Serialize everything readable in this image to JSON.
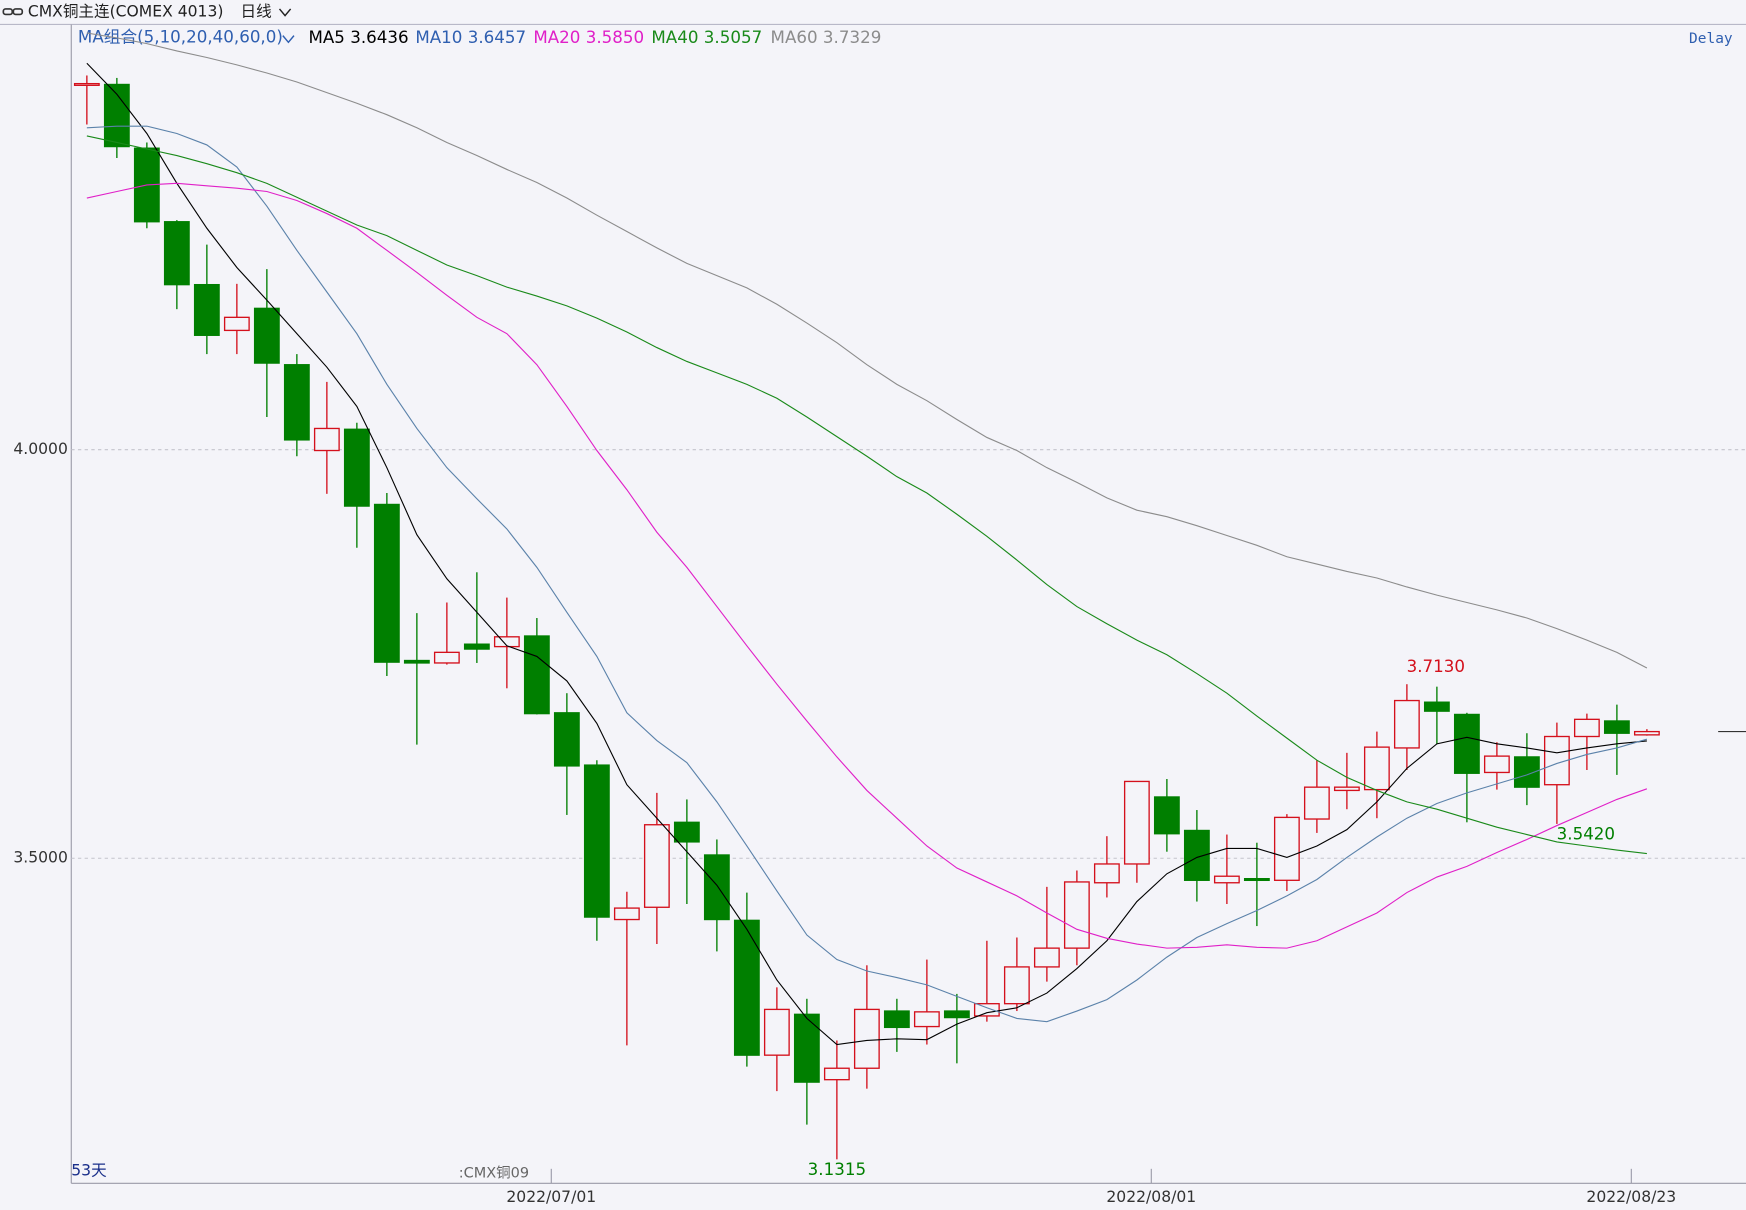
{
  "chart_data": {
    "type": "candlestick",
    "title": "CMX铜主连(COMEX 4013)",
    "period": "日线",
    "ma_group": "MA组合(5,10,20,40,60,0)",
    "delay": "Delay",
    "day_count": "53天",
    "contract": ":CMX铜09",
    "up_color": "#d4101c",
    "down_color": "#007f00",
    "categories": [
      null,
      null,
      null,
      null,
      null,
      null,
      null,
      null,
      null,
      null,
      null,
      null,
      null,
      null,
      null,
      null,
      "2022/07/01",
      null,
      null,
      null,
      null,
      null,
      null,
      null,
      null,
      null,
      null,
      null,
      null,
      null,
      null,
      null,
      null,
      null,
      null,
      null,
      "2022/08/01",
      null,
      null,
      null,
      null,
      null,
      null,
      null,
      null,
      null,
      null,
      null,
      null,
      null,
      null,
      null,
      "2022/08/23"
    ],
    "open": [
      4.448,
      4.447,
      4.369,
      4.279,
      4.202,
      4.146,
      4.173,
      4.104,
      3.999,
      4.025,
      3.933,
      3.742,
      3.739,
      3.762,
      3.759,
      3.772,
      3.678,
      3.614,
      3.425,
      3.44,
      3.544,
      3.504,
      3.424,
      3.259,
      3.309,
      3.229,
      3.243,
      3.313,
      3.294,
      3.313,
      3.307,
      3.322,
      3.367,
      3.39,
      3.47,
      3.493,
      3.575,
      3.534,
      3.47,
      3.475,
      3.473,
      3.548,
      3.583,
      3.584,
      3.635,
      3.691,
      3.676,
      3.605,
      3.624,
      3.59,
      3.649,
      3.668,
      3.651
    ],
    "high": [
      4.458,
      4.455,
      4.376,
      4.281,
      4.251,
      4.203,
      4.221,
      4.117,
      4.083,
      4.033,
      3.947,
      3.8,
      3.813,
      3.85,
      3.819,
      3.794,
      3.702,
      3.62,
      3.459,
      3.58,
      3.572,
      3.523,
      3.458,
      3.342,
      3.328,
      3.277,
      3.369,
      3.328,
      3.376,
      3.334,
      3.399,
      3.403,
      3.465,
      3.485,
      3.527,
      3.594,
      3.597,
      3.559,
      3.529,
      3.519,
      3.554,
      3.62,
      3.629,
      3.655,
      3.713,
      3.71,
      3.678,
      3.642,
      3.653,
      3.666,
      3.677,
      3.688,
      3.658
    ],
    "low": [
      4.398,
      4.357,
      4.271,
      4.172,
      4.117,
      4.117,
      4.04,
      3.992,
      3.946,
      3.88,
      3.723,
      3.639,
      3.737,
      3.739,
      3.708,
      3.676,
      3.553,
      3.399,
      3.271,
      3.395,
      3.444,
      3.386,
      3.245,
      3.215,
      3.174,
      3.1315,
      3.218,
      3.263,
      3.272,
      3.249,
      3.3,
      3.313,
      3.349,
      3.369,
      3.452,
      3.47,
      3.508,
      3.447,
      3.444,
      3.417,
      3.46,
      3.531,
      3.56,
      3.549,
      3.608,
      3.64,
      3.544,
      3.584,
      3.565,
      3.542,
      3.608,
      3.602,
      3.65
    ],
    "close": [
      4.448,
      4.371,
      4.279,
      4.202,
      4.14,
      4.162,
      4.106,
      4.012,
      4.026,
      3.931,
      3.74,
      3.739,
      3.752,
      3.756,
      3.771,
      3.677,
      3.613,
      3.428,
      3.439,
      3.541,
      3.52,
      3.425,
      3.259,
      3.315,
      3.226,
      3.243,
      3.315,
      3.293,
      3.312,
      3.305,
      3.322,
      3.367,
      3.39,
      3.471,
      3.493,
      3.594,
      3.53,
      3.473,
      3.478,
      3.473,
      3.55,
      3.587,
      3.587,
      3.636,
      3.693,
      3.68,
      3.604,
      3.625,
      3.587,
      3.649,
      3.67,
      3.653,
      3.655
    ],
    "series": [
      {
        "name": "MA5",
        "color": "#000000",
        "legend_value": "3.6436",
        "values": [
          4.473,
          4.435,
          4.387,
          4.326,
          4.271,
          4.223,
          4.183,
          4.142,
          4.101,
          4.053,
          3.978,
          3.896,
          3.842,
          3.801,
          3.76,
          3.747,
          3.717,
          3.665,
          3.59,
          3.549,
          3.508,
          3.467,
          3.413,
          3.351,
          3.304,
          3.272,
          3.277,
          3.279,
          3.278,
          3.297,
          3.311,
          3.317,
          3.335,
          3.365,
          3.399,
          3.447,
          3.481,
          3.501,
          3.512,
          3.512,
          3.501,
          3.515,
          3.535,
          3.569,
          3.61,
          3.64,
          3.648,
          3.64,
          3.635,
          3.629,
          3.635,
          3.64,
          3.6436
        ]
      },
      {
        "name": "MA10",
        "color": "#5b82aa",
        "legend_color": "#2f5fb0",
        "legend_value": "3.6457",
        "values": [
          4.394,
          4.396,
          4.396,
          4.387,
          4.373,
          4.346,
          4.298,
          4.244,
          4.193,
          4.142,
          4.08,
          4.026,
          3.978,
          3.94,
          3.903,
          3.856,
          3.801,
          3.747,
          3.678,
          3.644,
          3.617,
          3.569,
          3.515,
          3.46,
          3.406,
          3.376,
          3.362,
          3.354,
          3.345,
          3.331,
          3.317,
          3.304,
          3.3,
          3.313,
          3.327,
          3.351,
          3.379,
          3.403,
          3.42,
          3.436,
          3.454,
          3.474,
          3.501,
          3.526,
          3.549,
          3.567,
          3.58,
          3.591,
          3.602,
          3.616,
          3.627,
          3.635,
          3.6457
        ]
      },
      {
        "name": "MA20",
        "color": "#e020c8",
        "legend_value": "3.5850",
        "values": [
          4.308,
          4.316,
          4.324,
          4.326,
          4.323,
          4.32,
          4.316,
          4.305,
          4.289,
          4.271,
          4.244,
          4.217,
          4.189,
          4.162,
          4.142,
          4.104,
          4.053,
          3.999,
          3.951,
          3.899,
          3.856,
          3.808,
          3.76,
          3.713,
          3.668,
          3.624,
          3.583,
          3.549,
          3.515,
          3.488,
          3.471,
          3.454,
          3.433,
          3.413,
          3.402,
          3.395,
          3.39,
          3.391,
          3.394,
          3.391,
          3.39,
          3.399,
          3.416,
          3.433,
          3.458,
          3.477,
          3.49,
          3.507,
          3.523,
          3.54,
          3.556,
          3.572,
          3.585
        ]
      },
      {
        "name": "MA40",
        "color": "#1a8a1a",
        "legend_value": "3.5057",
        "values": [
          4.384,
          4.376,
          4.368,
          4.36,
          4.35,
          4.339,
          4.326,
          4.309,
          4.292,
          4.275,
          4.262,
          4.244,
          4.226,
          4.213,
          4.199,
          4.188,
          4.176,
          4.161,
          4.144,
          4.125,
          4.108,
          4.094,
          4.08,
          4.063,
          4.04,
          4.016,
          3.992,
          3.967,
          3.947,
          3.921,
          3.894,
          3.865,
          3.835,
          3.808,
          3.787,
          3.767,
          3.749,
          3.726,
          3.702,
          3.674,
          3.647,
          3.62,
          3.599,
          3.583,
          3.569,
          3.56,
          3.549,
          3.538,
          3.529,
          3.52,
          3.515,
          3.51,
          3.5057
        ]
      },
      {
        "name": "MA60",
        "color": "#8c8c8c",
        "legend_value": "3.7329",
        "values": [
          4.51,
          4.504,
          4.497,
          4.488,
          4.48,
          4.471,
          4.461,
          4.45,
          4.437,
          4.424,
          4.41,
          4.394,
          4.376,
          4.36,
          4.343,
          4.327,
          4.308,
          4.287,
          4.267,
          4.247,
          4.228,
          4.213,
          4.198,
          4.178,
          4.155,
          4.131,
          4.104,
          4.08,
          4.06,
          4.037,
          4.015,
          3.999,
          3.978,
          3.96,
          3.941,
          3.926,
          3.918,
          3.907,
          3.895,
          3.883,
          3.869,
          3.86,
          3.851,
          3.843,
          3.832,
          3.822,
          3.813,
          3.804,
          3.794,
          3.781,
          3.767,
          3.752,
          3.7329
        ]
      }
    ],
    "annotations": [
      {
        "value": 3.713,
        "label": "3.7130"
      },
      {
        "value": 3.1315,
        "label": "3.1315"
      },
      {
        "value": 3.542,
        "label": "3.5420"
      }
    ],
    "ylim": [
      3.1022,
      4.5204
    ],
    "yticks": [
      {
        "value": 3.5,
        "label": "3.5000"
      },
      {
        "value": 4.0,
        "label": "4.0000"
      }
    ],
    "grid": true
  }
}
